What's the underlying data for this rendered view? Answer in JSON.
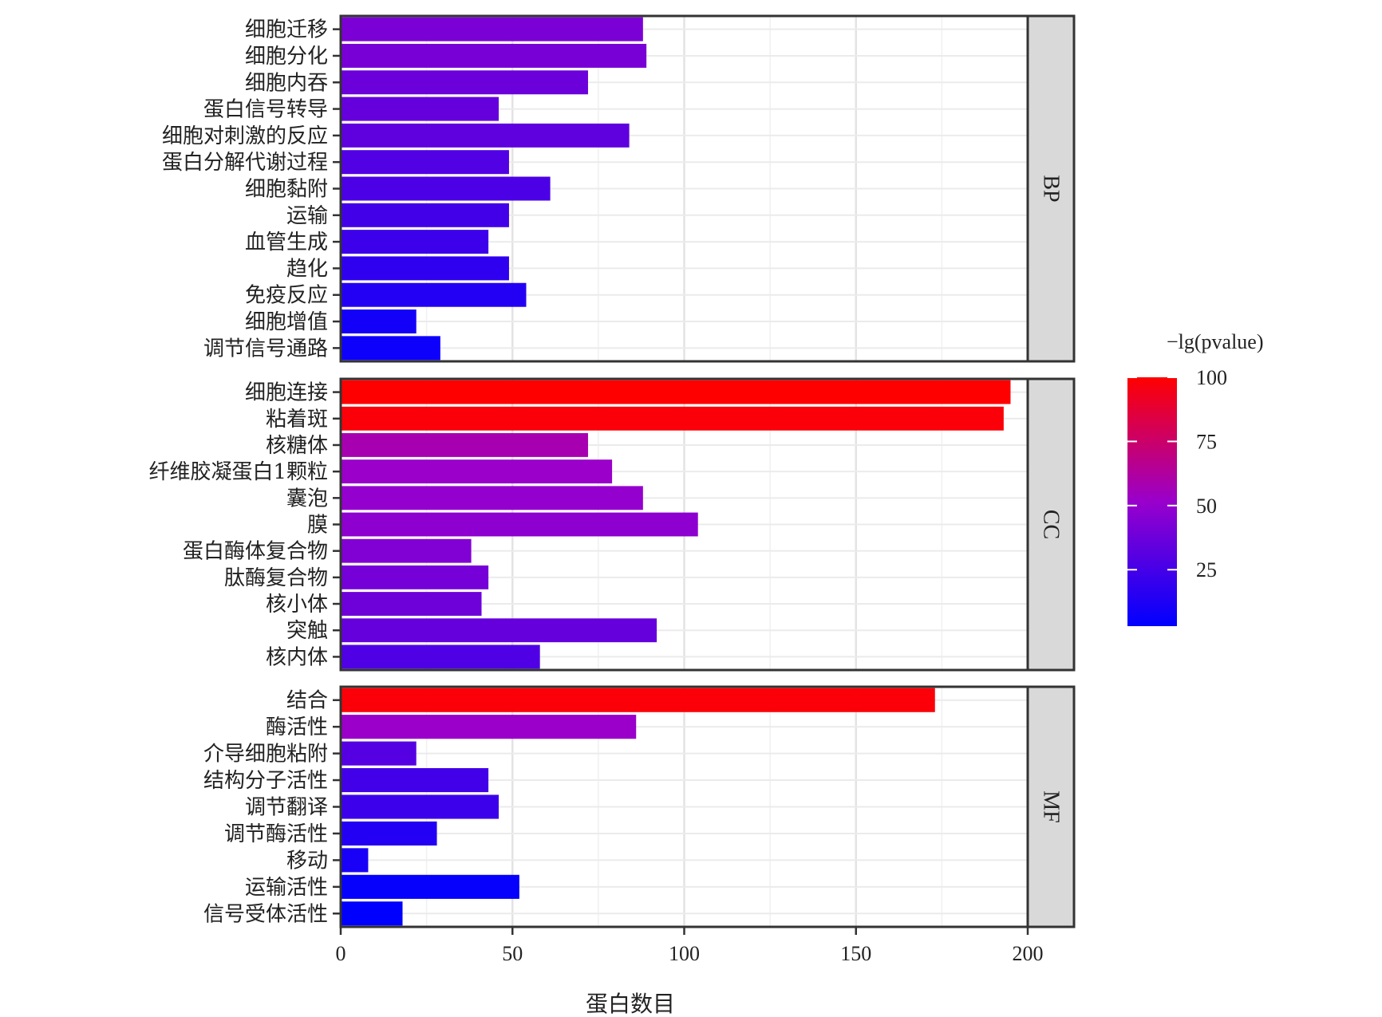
{
  "chart_data": {
    "type": "bar",
    "orientation": "horizontal",
    "xlabel": "蛋白数目",
    "ylabel": "",
    "xlim": [
      0,
      200
    ],
    "x_ticks": [
      "0",
      "50",
      "100",
      "150",
      "200"
    ],
    "grid": true,
    "legend": {
      "title": "−lg(pvalue)",
      "placement": "right",
      "range": [
        3,
        100
      ],
      "ticks": [
        "25",
        "50",
        "75",
        "100"
      ],
      "low_color": "#0000ff",
      "high_color": "#ff0000"
    },
    "facets": [
      {
        "name": "BP",
        "categories": [
          "细胞迁移",
          "细胞分化",
          "细胞内吞",
          "蛋白信号转导",
          "细胞对刺激的反应",
          "蛋白分解代谢过程",
          "细胞黏附",
          "运输",
          "血管生成",
          "趋化",
          "免疫反应",
          "细胞增值",
          "调节信号通路"
        ],
        "values": [
          88,
          89,
          72,
          46,
          84,
          49,
          61,
          49,
          43,
          49,
          54,
          22,
          29
        ],
        "pvalue": [
          42,
          41,
          37,
          35,
          33,
          29,
          27,
          24,
          22,
          18,
          14,
          9,
          7
        ]
      },
      {
        "name": "CC",
        "categories": [
          "细胞连接",
          "粘着斑",
          "核糖体",
          "纤维胶凝蛋白1颗粒",
          "囊泡",
          "膜",
          "蛋白酶体复合物",
          "肽酶复合物",
          "核小体",
          "突触",
          "核内体"
        ],
        "values": [
          195,
          193,
          72,
          79,
          88,
          104,
          38,
          43,
          41,
          92,
          58
        ],
        "pvalue": [
          100,
          98,
          58,
          52,
          50,
          48,
          44,
          40,
          38,
          35,
          28
        ]
      },
      {
        "name": "MF",
        "categories": [
          "结合",
          "酶活性",
          "介导细胞粘附",
          "结构分子活性",
          "调节翻译",
          "调节酶活性",
          "移动",
          "运输活性",
          "信号受体活性"
        ],
        "values": [
          173,
          86,
          22,
          43,
          46,
          28,
          8,
          52,
          18
        ],
        "pvalue": [
          98,
          52,
          30,
          24,
          22,
          14,
          11,
          5,
          3
        ]
      }
    ]
  }
}
